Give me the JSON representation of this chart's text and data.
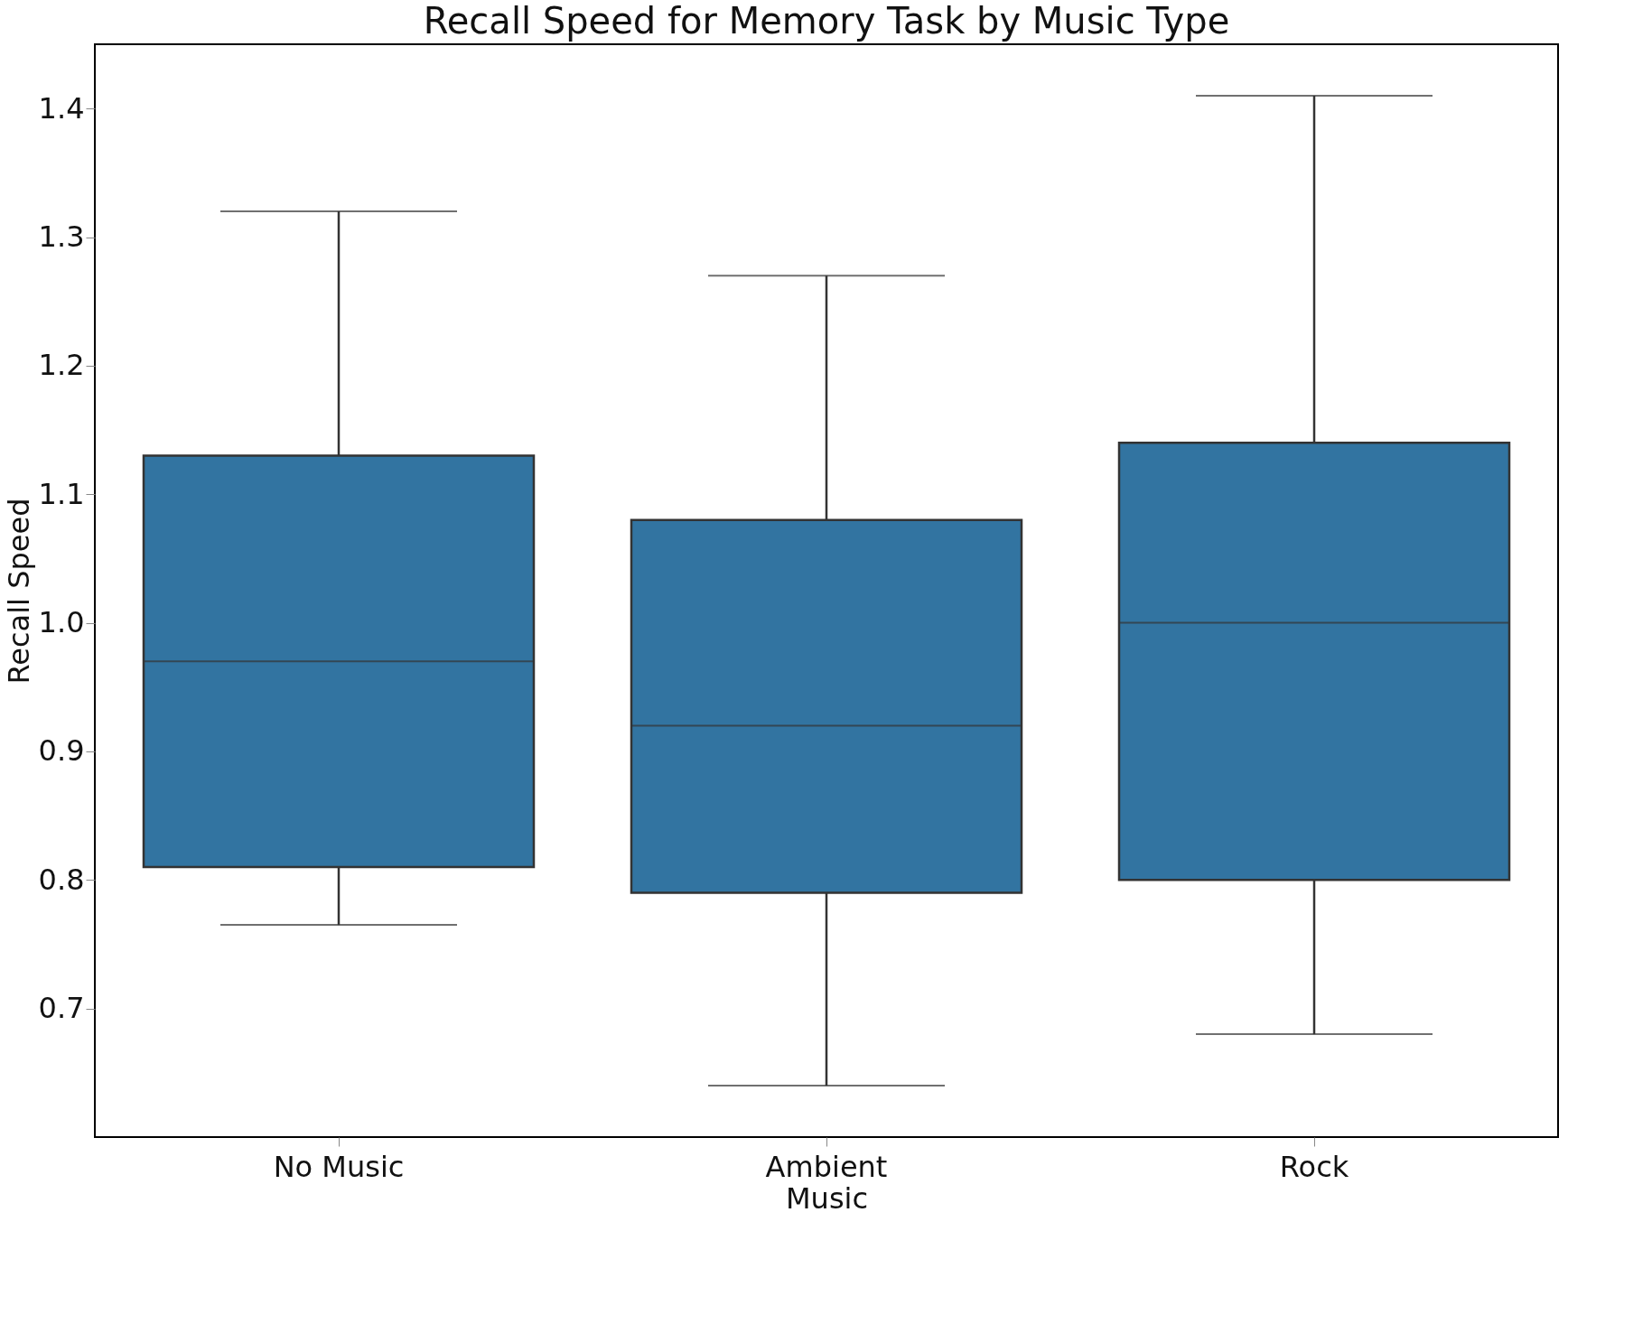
{
  "chart_data": {
    "type": "box",
    "title": "Recall Speed for Memory Task by Music Type",
    "xlabel": "Music",
    "ylabel": "Recall Speed",
    "categories": [
      "No Music",
      "Ambient",
      "Rock"
    ],
    "boxes": [
      {
        "low": 0.765,
        "q1": 0.81,
        "median": 0.97,
        "q3": 1.13,
        "high": 1.32
      },
      {
        "low": 0.64,
        "q1": 0.79,
        "median": 0.92,
        "q3": 1.08,
        "high": 1.27
      },
      {
        "low": 0.68,
        "q1": 0.8,
        "median": 1.0,
        "q3": 1.14,
        "high": 1.41
      }
    ],
    "color": "#3274a1",
    "ylim": [
      0.6,
      1.45
    ],
    "yticks": [
      {
        "value": 0.7,
        "label": "0.7"
      },
      {
        "value": 0.8,
        "label": "0.8"
      },
      {
        "value": 0.9,
        "label": "0.9"
      },
      {
        "value": 1,
        "label": "1.0"
      },
      {
        "value": 1.1,
        "label": "1.1"
      },
      {
        "value": 1.2,
        "label": "1.2"
      },
      {
        "value": 1.3,
        "label": "1.3"
      },
      {
        "value": 1.4,
        "label": "1.4"
      }
    ],
    "grid": false
  }
}
